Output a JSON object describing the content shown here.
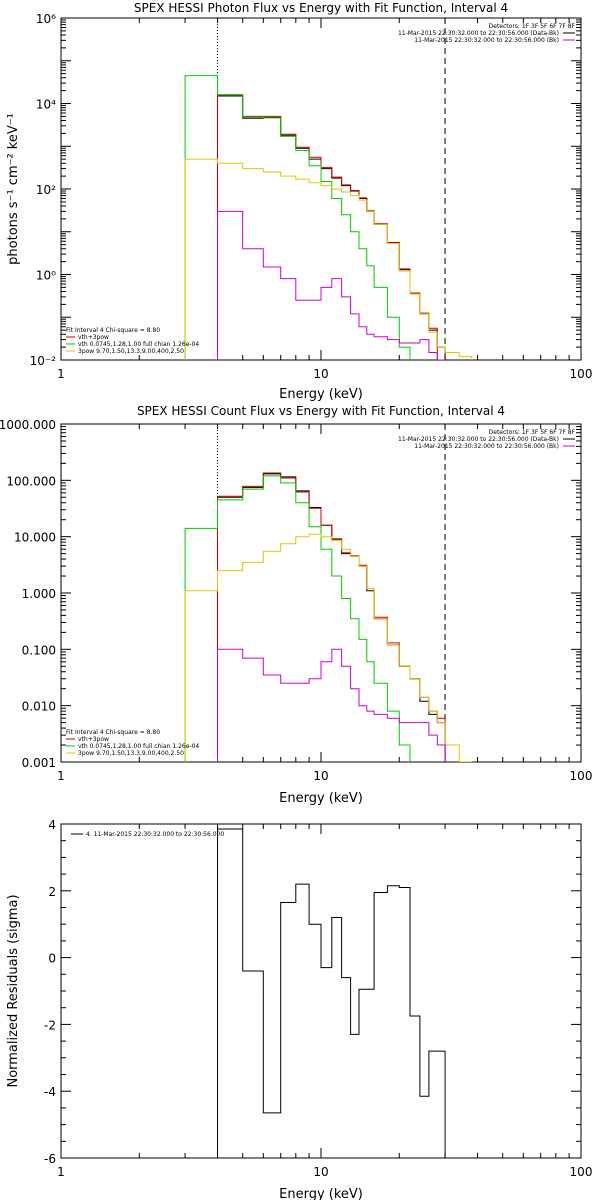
{
  "colors": {
    "black": "#000000",
    "red": "#cc0000",
    "green": "#00cc00",
    "yellow": "#e6c200",
    "magenta": "#cc00cc"
  },
  "chart_data": [
    {
      "type": "line",
      "step": true,
      "title": "SPEX HESSI Photon Flux vs Energy with Fit Function, Interval 4",
      "xlabel": "Energy (keV)",
      "ylabel": "photons s⁻¹ cm⁻² keV⁻¹",
      "xscale": "log",
      "yscale": "log",
      "xlim": [
        1,
        100
      ],
      "ylim": [
        0.01,
        1000000
      ],
      "xticks": [
        {
          "v": 1,
          "label": "1"
        },
        {
          "v": 10,
          "label": "10"
        },
        {
          "v": 100,
          "label": "100"
        }
      ],
      "yticks": [
        {
          "v": 0.01,
          "label": "10⁻²"
        },
        {
          "v": 1,
          "label": "10⁰"
        },
        {
          "v": 100,
          "label": "10²"
        },
        {
          "v": 10000,
          "label": "10⁴"
        },
        {
          "v": 1000000,
          "label": "10⁶"
        }
      ],
      "vlines": [
        {
          "x": 4,
          "style": "dotted"
        },
        {
          "x": 30,
          "style": "dashed"
        }
      ],
      "edges": [
        3,
        4,
        5,
        6,
        7,
        8,
        9,
        10,
        11,
        12,
        13,
        14,
        15,
        16,
        18,
        20,
        22,
        24,
        26,
        28,
        30,
        34,
        38
      ],
      "legend_top": [
        {
          "text": "Detectors: 1F 3F 5F 6F 7F 8F",
          "color": "black",
          "line": false
        },
        {
          "text": "11-Mar-2015 22:30:32.000 to 22:30:56.000 (Data-Bk)",
          "color": "black",
          "line": true
        },
        {
          "text": "11-Mar-2015 22:30:32.000 to 22:30:56.000 (Bk)",
          "color": "magenta",
          "line": true
        }
      ],
      "legend_bottom": [
        {
          "text": "Fit Interval 4   Chi-square = 8.80",
          "color": "black",
          "line": false
        },
        {
          "text": "vth+3pow",
          "color": "red",
          "line": true
        },
        {
          "text": "vth 0.0745,1.28,1.00  full chian 1.26e-04",
          "color": "green",
          "line": true
        },
        {
          "text": "3pow 9.70,1.50,13.3,9.00,400,2.50",
          "color": "yellow",
          "line": true
        }
      ],
      "series": [
        {
          "color": "black",
          "values": [
            null,
            15000,
            4500,
            4700,
            1800,
            900,
            500,
            300,
            180,
            120,
            90,
            60,
            30,
            15,
            5.5,
            1.3,
            0.36,
            0.12,
            0.05,
            0.02,
            null,
            null
          ]
        },
        {
          "color": "red",
          "values": [
            null,
            16000,
            5000,
            5000,
            1900,
            950,
            550,
            320,
            190,
            125,
            92,
            62,
            31,
            15.5,
            5.6,
            1.35,
            0.37,
            0.125,
            0.055,
            null,
            null,
            null
          ]
        },
        {
          "color": "green",
          "values": [
            45000,
            16000,
            4800,
            4600,
            1700,
            800,
            350,
            150,
            60,
            25,
            10,
            4,
            1.6,
            0.5,
            0.1,
            0.02,
            null,
            null,
            null,
            null,
            null,
            null
          ]
        },
        {
          "color": "yellow",
          "values": [
            500,
            400,
            300,
            250,
            200,
            170,
            140,
            120,
            100,
            85,
            70,
            55,
            30,
            15,
            5.3,
            1.2,
            0.35,
            0.12,
            0.045,
            0.02,
            0.015,
            0.012
          ]
        },
        {
          "color": "magenta",
          "values": [
            null,
            30,
            4,
            1.5,
            0.8,
            0.25,
            0.25,
            0.5,
            0.8,
            0.3,
            0.12,
            0.06,
            0.04,
            0.035,
            0.03,
            0.025,
            0.025,
            0.03,
            0.015,
            0.01,
            null,
            null
          ]
        }
      ]
    },
    {
      "type": "line",
      "step": true,
      "title": "SPEX HESSI Count Flux vs Energy with Fit Function, Interval 4",
      "xlabel": "Energy (keV)",
      "ylabel": "",
      "xscale": "log",
      "yscale": "log",
      "xlim": [
        1,
        100
      ],
      "ylim": [
        0.001,
        1000
      ],
      "xticks": [
        {
          "v": 1,
          "label": "1"
        },
        {
          "v": 10,
          "label": "10"
        },
        {
          "v": 100,
          "label": "100"
        }
      ],
      "yticks": [
        {
          "v": 0.001,
          "label": "0.001"
        },
        {
          "v": 0.01,
          "label": "0.010"
        },
        {
          "v": 0.1,
          "label": "0.100"
        },
        {
          "v": 1,
          "label": "1.000"
        },
        {
          "v": 10,
          "label": "10.000"
        },
        {
          "v": 100,
          "label": "100.000"
        },
        {
          "v": 1000,
          "label": "1000.000"
        }
      ],
      "vlines": [
        {
          "x": 4,
          "style": "dotted"
        },
        {
          "x": 30,
          "style": "dashed"
        }
      ],
      "edges": [
        3,
        4,
        5,
        6,
        7,
        8,
        9,
        10,
        11,
        12,
        13,
        14,
        15,
        16,
        18,
        20,
        22,
        24,
        26,
        28,
        30,
        34,
        38
      ],
      "legend_top": [
        {
          "text": "Detectors: 1F 3F 5F 6F 7F 8F",
          "color": "black",
          "line": false
        },
        {
          "text": "11-Mar-2015 22:30:32.000 to 22:30:56.000 (Data-Bk)",
          "color": "black",
          "line": true
        },
        {
          "text": "11-Mar-2015 22:30:32.000 to 22:30:56.000 (Bk)",
          "color": "magenta",
          "line": true
        }
      ],
      "legend_bottom": [
        {
          "text": "Fit Interval 4   Chi-square = 8.80",
          "color": "black",
          "line": false
        },
        {
          "text": "vth+3pow",
          "color": "red",
          "line": true
        },
        {
          "text": "vth 0.0745,1.28,1.00  full chian 1.26e-04",
          "color": "green",
          "line": true
        },
        {
          "text": "3pow 9.70,1.50,13.3,9.00,400,2.50",
          "color": "yellow",
          "line": true
        }
      ],
      "series": [
        {
          "color": "black",
          "values": [
            null,
            50,
            75,
            130,
            115,
            65,
            33,
            16,
            9,
            5,
            4.5,
            3,
            1.1,
            0.35,
            0.12,
            0.05,
            0.03,
            0.012,
            0.007,
            0.005,
            null,
            null
          ]
        },
        {
          "color": "red",
          "values": [
            null,
            52,
            78,
            135,
            110,
            62,
            32,
            16,
            9.2,
            5.2,
            4.6,
            3.1,
            1.2,
            0.37,
            0.13,
            0.05,
            0.03,
            0.014,
            0.008,
            0.006,
            null,
            null
          ]
        },
        {
          "color": "green",
          "values": [
            14,
            45,
            70,
            120,
            90,
            40,
            15,
            6,
            2,
            0.8,
            0.35,
            0.15,
            0.06,
            0.025,
            0.008,
            0.002,
            null,
            null,
            null,
            null,
            null,
            null
          ]
        },
        {
          "color": "yellow",
          "values": [
            1.1,
            2.5,
            3.5,
            5.5,
            7.5,
            10,
            11,
            10,
            8.5,
            6,
            4.5,
            3,
            1.2,
            0.35,
            0.12,
            0.05,
            0.03,
            0.014,
            0.008,
            0.005,
            0.002,
            0.001
          ]
        },
        {
          "color": "magenta",
          "values": [
            null,
            0.1,
            0.07,
            0.035,
            0.025,
            0.025,
            0.03,
            0.06,
            0.1,
            0.05,
            0.02,
            0.01,
            0.008,
            0.007,
            0.006,
            0.005,
            0.005,
            0.005,
            0.003,
            0.002,
            null,
            null
          ]
        }
      ]
    },
    {
      "type": "line",
      "step": true,
      "title": "",
      "xlabel": "Energy (keV)",
      "ylabel": "Normalized Residuals (sigma)",
      "xscale": "log",
      "yscale": "linear",
      "xlim": [
        1,
        100
      ],
      "ylim": [
        -6,
        4
      ],
      "xticks": [
        {
          "v": 1,
          "label": "1"
        },
        {
          "v": 10,
          "label": "10"
        },
        {
          "v": 100,
          "label": "100"
        }
      ],
      "yticks": [
        {
          "v": -6,
          "label": "-6"
        },
        {
          "v": -4,
          "label": "-4"
        },
        {
          "v": -2,
          "label": "-2"
        },
        {
          "v": 0,
          "label": "0"
        },
        {
          "v": 2,
          "label": "2"
        },
        {
          "v": 4,
          "label": "4"
        }
      ],
      "legend_top": [],
      "legend_bottom": [],
      "inner_legend": {
        "text": "4. 11-Mar-2015 22:30:32.000 to 22:30:56.000",
        "color": "black"
      },
      "edges": [
        4,
        5,
        6,
        7,
        8,
        9,
        10,
        11,
        12,
        13,
        14,
        16,
        18,
        20,
        22,
        24,
        26,
        28,
        30
      ],
      "series": [
        {
          "color": "black",
          "values": [
            3.85,
            -0.4,
            -4.65,
            1.65,
            2.2,
            1.0,
            -0.3,
            1.2,
            -0.6,
            -2.3,
            -0.95,
            1.95,
            2.15,
            2.1,
            -1.75,
            -4.15,
            -2.8,
            -2.8
          ],
          "drop_to": -6
        }
      ]
    }
  ]
}
